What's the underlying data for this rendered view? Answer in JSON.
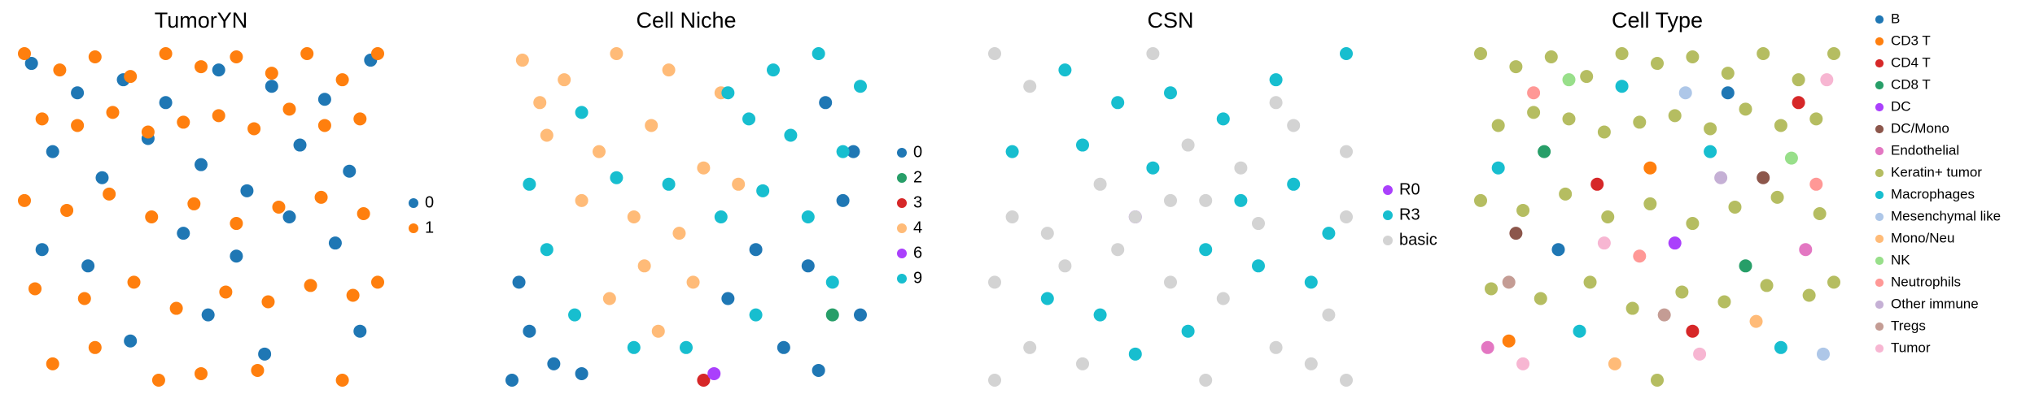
{
  "chart_data": [
    {
      "type": "scatter",
      "title": "TumorYN",
      "series": [
        {
          "name": "0",
          "color": "#1f77b4",
          "x": [
            2,
            15,
            28,
            40,
            55,
            70,
            85,
            98,
            8,
            22,
            35,
            50,
            63,
            78,
            92,
            5,
            18,
            45,
            60,
            75,
            88,
            30,
            52,
            68,
            95
          ],
          "y": [
            97,
            88,
            92,
            85,
            95,
            90,
            86,
            98,
            70,
            62,
            74,
            66,
            58,
            72,
            64,
            40,
            35,
            45,
            38,
            50,
            42,
            12,
            20,
            8,
            15
          ]
        },
        {
          "name": "1",
          "color": "#ff7f0e",
          "x": [
            0,
            10,
            20,
            30,
            40,
            50,
            60,
            70,
            80,
            90,
            100,
            5,
            15,
            25,
            35,
            45,
            55,
            65,
            75,
            85,
            95,
            0,
            12,
            24,
            36,
            48,
            60,
            72,
            84,
            96,
            3,
            17,
            31,
            43,
            57,
            69,
            81,
            93,
            100,
            8,
            38,
            66,
            90,
            20,
            50
          ],
          "y": [
            100,
            95,
            99,
            93,
            100,
            96,
            99,
            94,
            100,
            92,
            100,
            80,
            78,
            82,
            76,
            79,
            81,
            77,
            83,
            78,
            80,
            55,
            52,
            57,
            50,
            54,
            48,
            53,
            56,
            51,
            28,
            25,
            30,
            22,
            27,
            24,
            29,
            26,
            30,
            5,
            0,
            3,
            0,
            10,
            2
          ]
        }
      ]
    },
    {
      "type": "scatter",
      "title": "Cell Niche",
      "series": [
        {
          "name": "0",
          "color": "#1f77b4",
          "x": [
            0,
            5,
            12,
            2,
            20,
            70,
            85,
            95,
            100,
            90,
            78,
            88,
            62,
            98
          ],
          "y": [
            0,
            15,
            5,
            30,
            2,
            40,
            35,
            55,
            20,
            85,
            10,
            3,
            25,
            70
          ]
        },
        {
          "name": "2",
          "color": "#279e68",
          "x": [
            92
          ],
          "y": [
            20
          ]
        },
        {
          "name": "3",
          "color": "#d62728",
          "x": [
            55
          ],
          "y": [
            0
          ]
        },
        {
          "name": "4",
          "color": "#ffbb78",
          "x": [
            3,
            15,
            30,
            45,
            60,
            10,
            25,
            40,
            55,
            35,
            48,
            20,
            38,
            52,
            65,
            8,
            42,
            28
          ],
          "y": [
            98,
            92,
            100,
            95,
            88,
            75,
            70,
            78,
            65,
            50,
            45,
            55,
            35,
            30,
            60,
            85,
            15,
            25
          ]
        },
        {
          "name": "6",
          "color": "#aa40fc",
          "x": [
            58
          ],
          "y": [
            2
          ]
        },
        {
          "name": "9",
          "color": "#17becf",
          "x": [
            75,
            88,
            100,
            68,
            80,
            95,
            20,
            5,
            30,
            62,
            72,
            85,
            10,
            45,
            18,
            50,
            70,
            92,
            35,
            60
          ],
          "y": [
            95,
            100,
            90,
            80,
            75,
            70,
            82,
            60,
            62,
            88,
            58,
            50,
            40,
            60,
            20,
            10,
            20,
            30,
            10,
            50
          ]
        }
      ]
    },
    {
      "type": "scatter",
      "title": "CSN",
      "series": [
        {
          "name": "R0",
          "color": "#aa40fc",
          "x": [
            40
          ],
          "y": [
            50
          ]
        },
        {
          "name": "R3",
          "color": "#17becf",
          "x": [
            20,
            35,
            50,
            65,
            80,
            5,
            25,
            45,
            70,
            85,
            95,
            60,
            75,
            15,
            30,
            55,
            90,
            40,
            100
          ],
          "y": [
            95,
            85,
            88,
            80,
            92,
            70,
            72,
            65,
            55,
            60,
            45,
            40,
            35,
            25,
            20,
            15,
            30,
            8,
            100
          ]
        },
        {
          "name": "basic",
          "color": "#d3d3d3",
          "x": [
            0,
            10,
            5,
            45,
            55,
            60,
            15,
            35,
            50,
            65,
            80,
            90,
            100,
            10,
            25,
            40,
            70,
            85,
            100,
            0,
            20,
            50,
            60,
            80,
            95,
            30,
            0,
            100,
            75
          ],
          "y": [
            100,
            90,
            50,
            100,
            72,
            55,
            45,
            40,
            30,
            25,
            10,
            5,
            0,
            10,
            5,
            50,
            65,
            78,
            70,
            0,
            35,
            55,
            0,
            85,
            20,
            60,
            30,
            50,
            48
          ]
        }
      ]
    },
    {
      "type": "scatter",
      "title": "Cell Type",
      "series": [
        {
          "name": "B",
          "color": "#1f77b4",
          "x": [
            22,
            70
          ],
          "y": [
            40,
            88
          ]
        },
        {
          "name": "CD3 T",
          "color": "#ff7f0e",
          "x": [
            48,
            8
          ],
          "y": [
            65,
            12
          ]
        },
        {
          "name": "CD4 T",
          "color": "#d62728",
          "x": [
            33,
            90,
            60
          ],
          "y": [
            60,
            85,
            15
          ]
        },
        {
          "name": "CD8 T",
          "color": "#279e68",
          "x": [
            75,
            18
          ],
          "y": [
            35,
            70
          ]
        },
        {
          "name": "DC",
          "color": "#aa40fc",
          "x": [
            55
          ],
          "y": [
            42
          ]
        },
        {
          "name": "DC/Mono",
          "color": "#8c564b",
          "x": [
            10,
            80
          ],
          "y": [
            45,
            62
          ]
        },
        {
          "name": "Endothelial",
          "color": "#e377c2",
          "x": [
            2,
            92
          ],
          "y": [
            10,
            40
          ]
        },
        {
          "name": "Keratin+ tumor",
          "color": "#b5bd61",
          "x": [
            0,
            10,
            20,
            30,
            40,
            50,
            60,
            70,
            80,
            90,
            100,
            5,
            15,
            25,
            35,
            45,
            55,
            65,
            75,
            85,
            95,
            0,
            12,
            24,
            36,
            48,
            60,
            72,
            84,
            96,
            3,
            17,
            31,
            43,
            57,
            69,
            81,
            93,
            100,
            50
          ],
          "y": [
            100,
            96,
            99,
            93,
            100,
            97,
            99,
            94,
            100,
            92,
            100,
            78,
            82,
            80,
            76,
            79,
            81,
            77,
            83,
            78,
            80,
            55,
            52,
            57,
            50,
            54,
            48,
            53,
            56,
            51,
            28,
            25,
            30,
            22,
            27,
            24,
            29,
            26,
            30,
            0
          ]
        },
        {
          "name": "Macrophages",
          "color": "#17becf",
          "x": [
            40,
            65,
            85,
            28,
            5
          ],
          "y": [
            90,
            70,
            10,
            15,
            65
          ]
        },
        {
          "name": "Mesenchymal like",
          "color": "#aec7e8",
          "x": [
            58,
            97
          ],
          "y": [
            88,
            8
          ]
        },
        {
          "name": "Mono/Neu",
          "color": "#ffbb78",
          "x": [
            38,
            78
          ],
          "y": [
            5,
            18
          ]
        },
        {
          "name": "NK",
          "color": "#98df8a",
          "x": [
            88,
            25
          ],
          "y": [
            68,
            92
          ]
        },
        {
          "name": "Neutrophils",
          "color": "#ff9896",
          "x": [
            45,
            95,
            15
          ],
          "y": [
            38,
            60,
            88
          ]
        },
        {
          "name": "Other immune",
          "color": "#c5b0d5",
          "x": [
            68
          ],
          "y": [
            62
          ]
        },
        {
          "name": "Tregs",
          "color": "#c49c94",
          "x": [
            8,
            52
          ],
          "y": [
            30,
            20
          ]
        },
        {
          "name": "Tumor",
          "color": "#f7b6d2",
          "x": [
            12,
            62,
            98,
            35
          ],
          "y": [
            5,
            8,
            92,
            42
          ]
        }
      ]
    }
  ]
}
